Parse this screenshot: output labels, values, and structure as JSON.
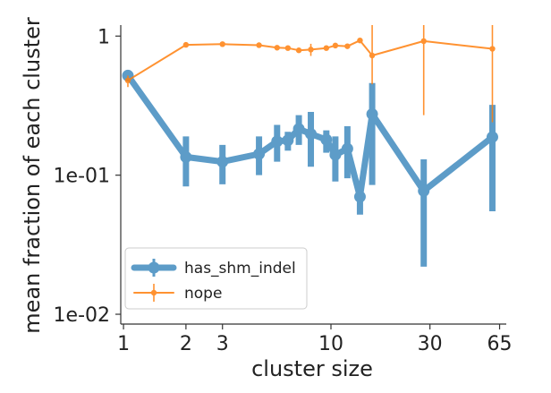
{
  "chart_data": {
    "type": "line",
    "title": "",
    "xlabel": "cluster size",
    "ylabel": "mean fraction of each cluster",
    "xscale": "log",
    "yscale": "log",
    "xlim": [
      0.97,
      70
    ],
    "ylim": [
      0.0085,
      1.2
    ],
    "xticks": [
      1,
      2,
      3,
      10,
      30,
      65
    ],
    "xtick_labels": [
      "1",
      "2",
      "3",
      "10",
      "30",
      "65"
    ],
    "yticks": [
      0.01,
      0.1,
      1
    ],
    "ytick_labels": [
      "1e-02",
      "1e-01",
      "1"
    ],
    "grid": false,
    "legend_position": "lower-left",
    "series": [
      {
        "name": "has_shm_indel",
        "color": "#1f77b4",
        "style": "thick line with large circle markers and error bars",
        "points": [
          {
            "x": 1.05,
            "y": 0.52,
            "lo": 0.48,
            "hi": 0.56
          },
          {
            "x": 2,
            "y": 0.135,
            "lo": 0.083,
            "hi": 0.19
          },
          {
            "x": 3,
            "y": 0.125,
            "lo": 0.086,
            "hi": 0.165
          },
          {
            "x": 4.5,
            "y": 0.142,
            "lo": 0.1,
            "hi": 0.19
          },
          {
            "x": 5.5,
            "y": 0.175,
            "lo": 0.125,
            "hi": 0.23
          },
          {
            "x": 6.2,
            "y": 0.178,
            "lo": 0.15,
            "hi": 0.205
          },
          {
            "x": 7,
            "y": 0.215,
            "lo": 0.165,
            "hi": 0.27
          },
          {
            "x": 8,
            "y": 0.198,
            "lo": 0.115,
            "hi": 0.285
          },
          {
            "x": 9.5,
            "y": 0.18,
            "lo": 0.145,
            "hi": 0.21
          },
          {
            "x": 10.5,
            "y": 0.14,
            "lo": 0.09,
            "hi": 0.19
          },
          {
            "x": 12,
            "y": 0.155,
            "lo": 0.095,
            "hi": 0.225
          },
          {
            "x": 13.8,
            "y": 0.07,
            "lo": 0.052,
            "hi": 0.09
          },
          {
            "x": 15.8,
            "y": 0.275,
            "lo": 0.085,
            "hi": 0.46
          },
          {
            "x": 28,
            "y": 0.077,
            "lo": 0.022,
            "hi": 0.13
          },
          {
            "x": 60,
            "y": 0.188,
            "lo": 0.055,
            "hi": 0.32
          }
        ]
      },
      {
        "name": "nope",
        "color": "#ff7f0e",
        "style": "thin line with small dot markers and error bars",
        "points": [
          {
            "x": 1.05,
            "y": 0.48,
            "lo": 0.43,
            "hi": 0.52
          },
          {
            "x": 2,
            "y": 0.865
          },
          {
            "x": 3,
            "y": 0.875
          },
          {
            "x": 4.5,
            "y": 0.86
          },
          {
            "x": 5.5,
            "y": 0.825
          },
          {
            "x": 6.2,
            "y": 0.82
          },
          {
            "x": 7,
            "y": 0.79
          },
          {
            "x": 8,
            "y": 0.8,
            "lo": 0.72,
            "hi": 0.88
          },
          {
            "x": 9.5,
            "y": 0.82
          },
          {
            "x": 10.5,
            "y": 0.855
          },
          {
            "x": 12,
            "y": 0.845
          },
          {
            "x": 13.8,
            "y": 0.93
          },
          {
            "x": 15.8,
            "y": 0.725,
            "lo": 0.45,
            "hi": 1.2
          },
          {
            "x": 28,
            "y": 0.92,
            "lo": 0.27,
            "hi": 1.2
          },
          {
            "x": 60,
            "y": 0.81,
            "lo": 0.24,
            "hi": 1.2
          }
        ]
      }
    ]
  }
}
